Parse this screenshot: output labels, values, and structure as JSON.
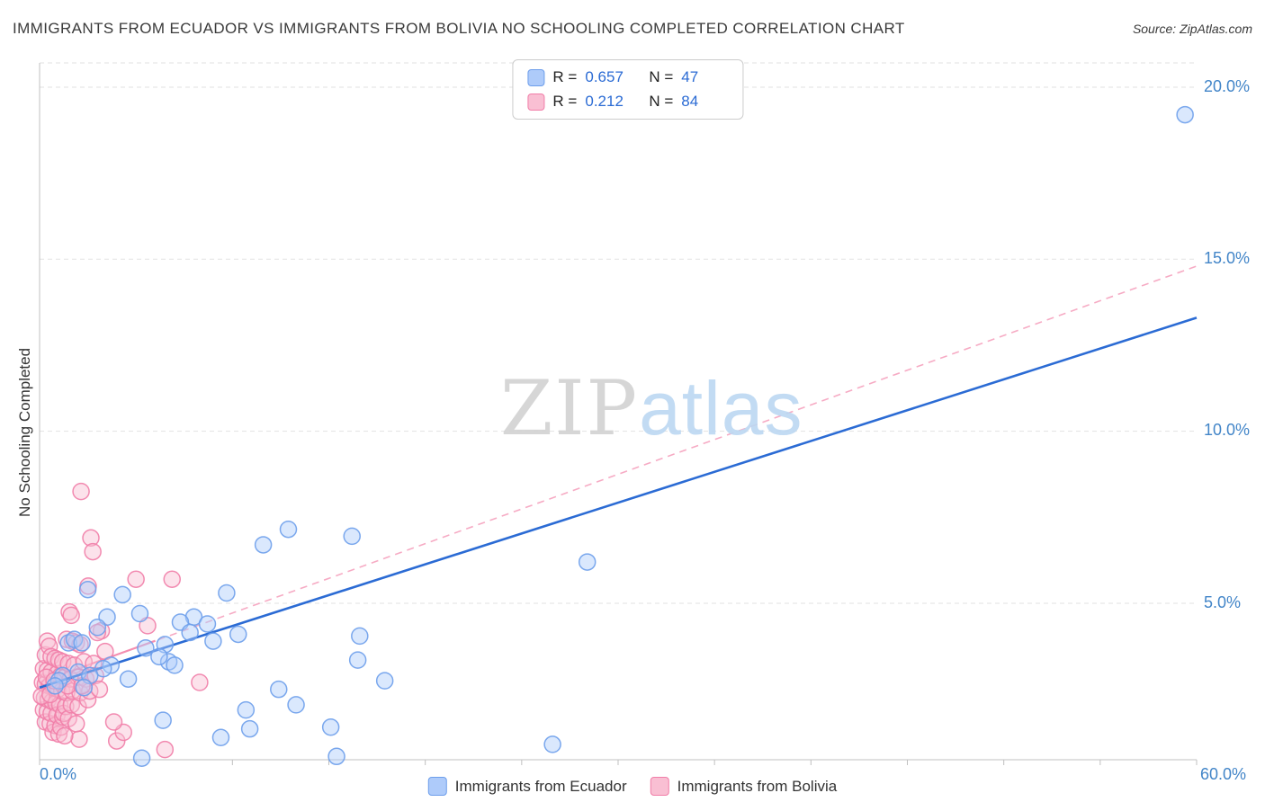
{
  "header": {
    "title": "IMMIGRANTS FROM ECUADOR VS IMMIGRANTS FROM BOLIVIA NO SCHOOLING COMPLETED CORRELATION CHART",
    "source": "Source: ZipAtlas.com"
  },
  "legend_box": {
    "entries": [
      {
        "r_label": "R =",
        "r_value": "0.657",
        "n_label": "N =",
        "n_value": "47"
      },
      {
        "r_label": "R =",
        "r_value": "0.212",
        "n_label": "N =",
        "n_value": "84"
      }
    ]
  },
  "watermark": {
    "zip": "ZIP",
    "atlas": "atlas"
  },
  "bottom_legend": [
    {
      "label": "Immigrants from Ecuador"
    },
    {
      "label": "Immigrants from Bolivia"
    }
  ],
  "chart_data": {
    "type": "scatter",
    "title": "IMMIGRANTS FROM ECUADOR VS IMMIGRANTS FROM BOLIVIA NO SCHOOLING COMPLETED CORRELATION CHART",
    "xlabel": "",
    "ylabel": "No Schooling Completed",
    "x_range": [
      0,
      60
    ],
    "y_range": [
      0,
      21
    ],
    "grid": true,
    "grid_y_values": [
      5,
      10,
      15,
      20
    ],
    "y_tick_labels": [
      "20.0%",
      "15.0%",
      "10.0%",
      "5.0%"
    ],
    "x_tick_labels": [
      "0.0%",
      "60.0%"
    ],
    "legend_position": "top-center",
    "series": [
      {
        "key": "ecuador",
        "name": "Immigrants from Ecuador",
        "r": 0.657,
        "n": 47,
        "fill": "#AECBFA",
        "stroke": "#6D9EEB",
        "line_color": "#2B6BD4",
        "trend": {
          "x0": 0,
          "y0": 2.55,
          "x1": 60,
          "y1": 13.3,
          "dash": false
        },
        "points": [
          [
            59.4,
            19.2
          ],
          [
            28.4,
            6.2
          ],
          [
            16.2,
            6.95
          ],
          [
            12.9,
            7.15
          ],
          [
            11.6,
            6.7
          ],
          [
            9.7,
            5.3
          ],
          [
            4.3,
            5.25
          ],
          [
            2.5,
            5.4
          ],
          [
            5.2,
            4.7
          ],
          [
            8.0,
            4.6
          ],
          [
            7.3,
            4.45
          ],
          [
            3.5,
            4.6
          ],
          [
            3.0,
            4.3
          ],
          [
            10.3,
            4.1
          ],
          [
            7.8,
            4.15
          ],
          [
            9.0,
            3.9
          ],
          [
            6.5,
            3.8
          ],
          [
            5.5,
            3.7
          ],
          [
            1.5,
            3.85
          ],
          [
            1.8,
            3.95
          ],
          [
            2.2,
            3.85
          ],
          [
            16.6,
            4.05
          ],
          [
            16.5,
            3.35
          ],
          [
            17.9,
            2.75
          ],
          [
            12.4,
            2.5
          ],
          [
            6.7,
            3.3
          ],
          [
            7.0,
            3.2
          ],
          [
            6.2,
            3.45
          ],
          [
            3.7,
            3.2
          ],
          [
            3.3,
            3.1
          ],
          [
            2.0,
            3.0
          ],
          [
            1.2,
            2.9
          ],
          [
            1.0,
            2.75
          ],
          [
            0.8,
            2.6
          ],
          [
            2.6,
            2.9
          ],
          [
            13.3,
            2.05
          ],
          [
            10.7,
            1.9
          ],
          [
            15.1,
            1.4
          ],
          [
            6.4,
            1.6
          ],
          [
            9.4,
            1.1
          ],
          [
            10.9,
            1.35
          ],
          [
            15.4,
            0.55
          ],
          [
            26.6,
            0.9
          ],
          [
            5.3,
            0.5
          ],
          [
            2.3,
            2.55
          ],
          [
            4.6,
            2.8
          ],
          [
            8.7,
            4.4
          ]
        ]
      },
      {
        "key": "bolivia",
        "name": "Immigrants from Bolivia",
        "r": 0.212,
        "n": 84,
        "fill": "#F9BFD3",
        "stroke": "#F17EA8",
        "line_color": "#F48FB1",
        "trend": {
          "x0": 0,
          "y0": 2.7,
          "x1": 60,
          "y1": 14.8,
          "dash": true,
          "solid_until": 6
        },
        "points": [
          [
            2.15,
            8.25
          ],
          [
            2.66,
            6.9
          ],
          [
            2.76,
            6.5
          ],
          [
            5.0,
            5.7
          ],
          [
            6.87,
            5.7
          ],
          [
            2.52,
            5.5
          ],
          [
            1.54,
            4.75
          ],
          [
            1.64,
            4.65
          ],
          [
            3.2,
            4.2
          ],
          [
            5.6,
            4.35
          ],
          [
            8.3,
            2.7
          ],
          [
            4.0,
            1.0
          ],
          [
            4.35,
            1.25
          ],
          [
            3.85,
            1.55
          ],
          [
            6.5,
            0.75
          ],
          [
            2.05,
            1.05
          ],
          [
            0.15,
            2.7
          ],
          [
            0.2,
            3.1
          ],
          [
            0.2,
            1.9
          ],
          [
            0.25,
            2.25
          ],
          [
            0.3,
            3.5
          ],
          [
            0.3,
            2.65
          ],
          [
            0.3,
            1.55
          ],
          [
            0.4,
            3.9
          ],
          [
            0.4,
            3.05
          ],
          [
            0.4,
            1.85
          ],
          [
            0.45,
            2.2
          ],
          [
            0.5,
            3.75
          ],
          [
            0.5,
            2.6
          ],
          [
            0.55,
            1.5
          ],
          [
            0.6,
            3.45
          ],
          [
            0.6,
            3.0
          ],
          [
            0.6,
            1.8
          ],
          [
            0.65,
            2.15
          ],
          [
            0.7,
            2.55
          ],
          [
            0.7,
            1.25
          ],
          [
            0.8,
            3.4
          ],
          [
            0.8,
            1.45
          ],
          [
            0.85,
            2.1
          ],
          [
            0.9,
            2.95
          ],
          [
            0.9,
            1.75
          ],
          [
            0.95,
            2.5
          ],
          [
            1.0,
            3.35
          ],
          [
            1.0,
            1.2
          ],
          [
            1.05,
            2.05
          ],
          [
            1.1,
            2.9
          ],
          [
            1.1,
            1.4
          ],
          [
            1.15,
            2.45
          ],
          [
            1.2,
            3.3
          ],
          [
            1.2,
            1.7
          ],
          [
            1.25,
            1.8
          ],
          [
            1.3,
            2.85
          ],
          [
            1.3,
            1.15
          ],
          [
            1.35,
            2.0
          ],
          [
            1.4,
            3.95
          ],
          [
            1.4,
            2.4
          ],
          [
            1.5,
            3.25
          ],
          [
            1.5,
            1.65
          ],
          [
            1.6,
            2.8
          ],
          [
            1.65,
            2.05
          ],
          [
            1.7,
            3.9
          ],
          [
            1.7,
            2.45
          ],
          [
            1.8,
            3.2
          ],
          [
            1.9,
            3.85
          ],
          [
            1.9,
            1.5
          ],
          [
            2.0,
            2.85
          ],
          [
            2.0,
            2.0
          ],
          [
            2.1,
            3.8
          ],
          [
            2.1,
            2.4
          ],
          [
            2.3,
            3.3
          ],
          [
            2.4,
            2.8
          ],
          [
            2.5,
            2.2
          ],
          [
            2.6,
            2.45
          ],
          [
            2.8,
            3.25
          ],
          [
            2.9,
            2.9
          ],
          [
            3.0,
            4.15
          ],
          [
            3.1,
            2.5
          ],
          [
            3.4,
            3.6
          ],
          [
            0.1,
            2.3
          ],
          [
            0.35,
            2.85
          ],
          [
            0.55,
            2.35
          ],
          [
            0.75,
            2.75
          ],
          [
            1.45,
            2.6
          ],
          [
            2.2,
            2.6
          ]
        ]
      }
    ]
  }
}
